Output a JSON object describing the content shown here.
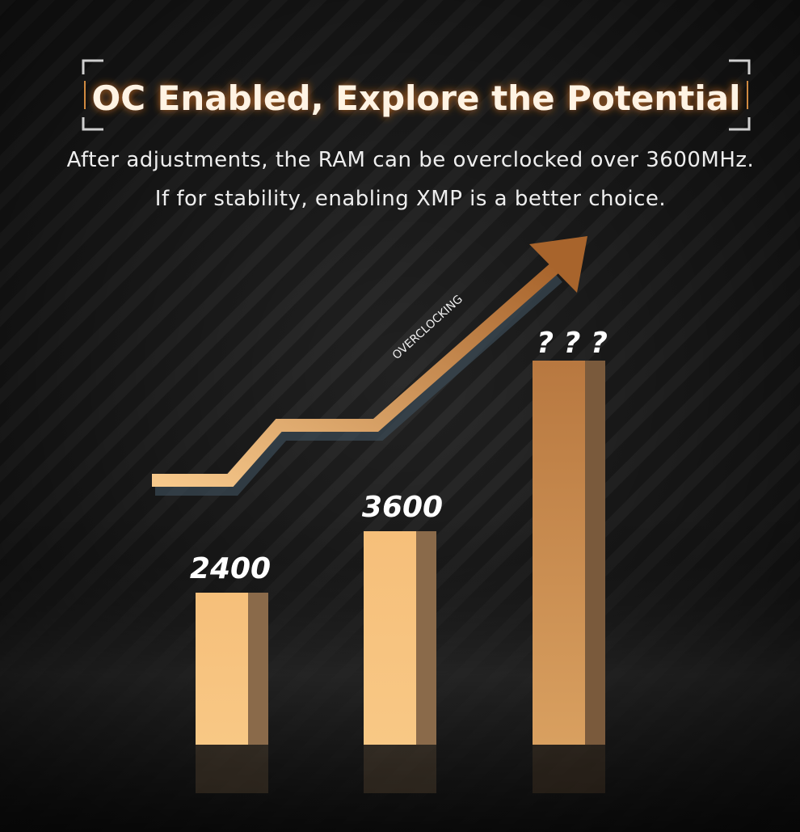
{
  "header": {
    "title": "OC Enabled, Explore the Potential",
    "subtitle_lines": [
      "After adjustments, the RAM can be overclocked over 3600MHz.",
      "If for stability, enabling XMP is a better choice."
    ]
  },
  "arrow_label": "OVERCLOCKING",
  "bars": [
    {
      "label": "2400"
    },
    {
      "label": "3600"
    },
    {
      "label": "? ? ?"
    }
  ]
}
